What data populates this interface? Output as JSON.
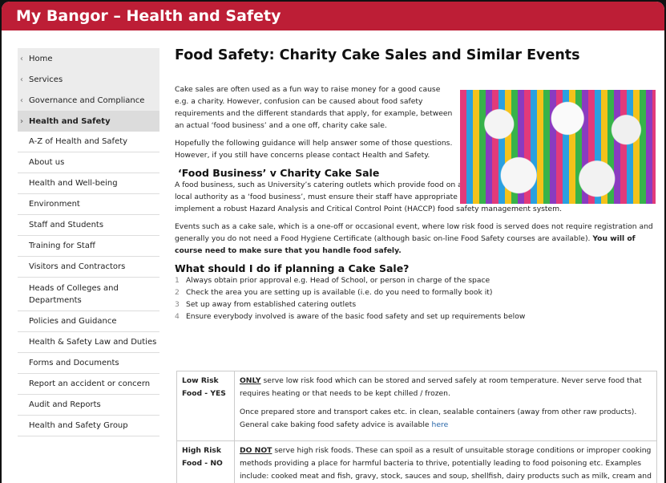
{
  "header": {
    "title": "My Bangor – Health and Safety",
    "color": "#bd1e36"
  },
  "sidebar": {
    "parents": [
      {
        "label": "Home"
      },
      {
        "label": "Services"
      },
      {
        "label": "Governance and Compliance"
      },
      {
        "label": "Health and Safety",
        "active": true
      }
    ],
    "items": [
      "A-Z of Health and Safety",
      "About us",
      "Health and Well-being",
      "Environment",
      "Staff and Students",
      "Training for Staff",
      "Visitors and Contractors",
      "Heads of Colleges and Departments",
      "Policies and Guidance",
      "Health & Safety Law and Duties",
      "Forms and Documents",
      "Report an accident or concern",
      "Audit and Reports",
      "Health and Safety Group"
    ]
  },
  "main": {
    "title": "Food Safety: Charity Cake Sales and Similar Events",
    "intro1": "Cake sales are often used as a fun way to raise money for a good cause e.g. a charity. However, confusion can be caused about food safety requirements and the different standards that apply, for example, between an actual ‘food business’ and a one off, charity cake sale.",
    "intro2": "Hopefully the following guidance will help answer some of those questions. However, if you still have concerns please contact Health and Safety.",
    "h2a": "‘Food Business’ v Charity Cake Sale",
    "para1": "A food business, such as University’s catering outlets which provide food on a regular and organised basis, must register with the local authority as a ‘food business’, must ensure their staff have appropriate training (e.g. Food Hygiene Certificates) and must implement a robust Hazard Analysis and Critical Control Point (HACCP) food safety management system.",
    "para2": "Events such as a cake sale, which is a one-off or occasional event, where low risk food is served does not require registration and generally you do not need a Food Hygiene Certificate (although basic on-line Food Safety courses are available).",
    "para2_bold": "You will of course need to make sure that you handle food safely.",
    "h2b": "What should I do if planning a Cake Sale?",
    "steps": [
      {
        "n": "1",
        "t": "Always obtain prior approval e.g. Head of School, or person in charge of the space"
      },
      {
        "n": "2",
        "t": "Check the area you are setting up is available (i.e. do you need to formally book it)"
      },
      {
        "n": "3",
        "t": "Set up away from established catering outlets"
      },
      {
        "n": "4",
        "t": "Ensure everybody involved is aware of the basic food safety and set up requirements below"
      }
    ],
    "table": {
      "low": {
        "label": "Low Risk Food - YES",
        "lead": "ONLY",
        "t1": " serve low risk food which can be stored and served safely at room temperature.  Never serve food that requires heating or that needs to be kept chilled / frozen.",
        "t2": "Once prepared store and transport cakes etc. in clean, sealable containers (away from other raw products).  General cake baking food safety advice is available ",
        "link": "here"
      },
      "high": {
        "label": "High Risk Food - NO",
        "lead": "DO NOT",
        "t1": " serve high risk foods. These can spoil as a result of unsuitable storage conditions or improper cooking methods providing a place for harmful bacteria to thrive, potentially leading to food poisoning etc. Examples include: cooked meat and fish, gravy, stock, sauces and soup, shellfish, dairy products such as milk, cream and soya milk, cooked rice."
      }
    }
  }
}
